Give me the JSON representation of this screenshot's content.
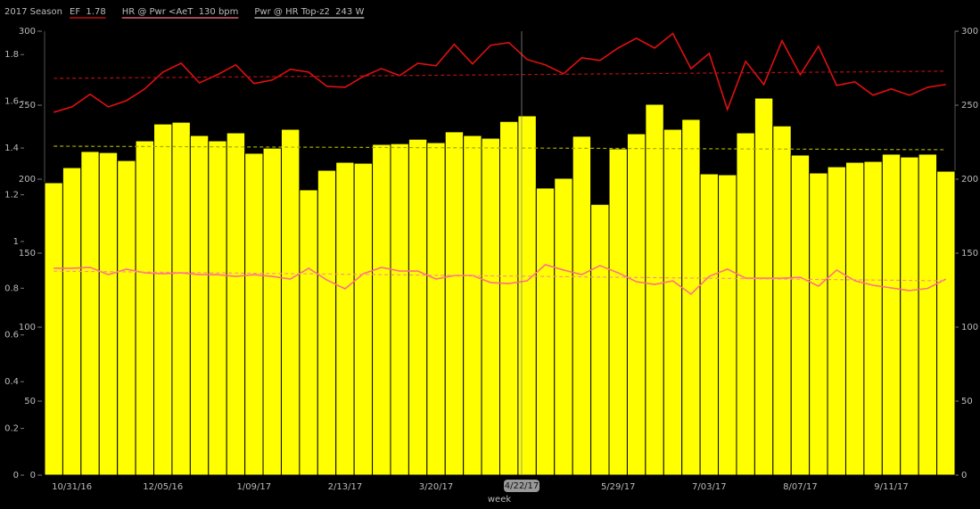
{
  "chart_data": {
    "type": "bar",
    "title": "2017 Season",
    "x_label": "week",
    "crosshair_label": "4/22/17",
    "categories": [
      null,
      "10/31/16",
      null,
      null,
      null,
      null,
      "12/05/16",
      null,
      null,
      null,
      null,
      "1/09/17",
      null,
      null,
      null,
      null,
      "2/13/17",
      null,
      null,
      null,
      null,
      "3/20/17",
      null,
      null,
      null,
      null,
      null,
      null,
      null,
      null,
      null,
      "5/29/17",
      null,
      null,
      null,
      null,
      "7/03/17",
      null,
      null,
      null,
      null,
      "8/07/17",
      null,
      null,
      null,
      null,
      "9/11/17",
      null,
      null,
      null
    ],
    "ylim": [
      0,
      300
    ],
    "yticks": [
      0,
      50,
      100,
      150,
      200,
      250,
      300
    ],
    "y2lim": [
      0,
      1.9
    ],
    "y2ticks": [
      0,
      0.2,
      0.4,
      0.6,
      0.8,
      1,
      1.2,
      1.4,
      1.6,
      1.8
    ],
    "series": [
      {
        "name": "Pwr @ HR Top-z2  243 W",
        "type": "bar",
        "color": "#ffff00",
        "trend_color": "#a8a800",
        "trend": [
          222.3,
          219.9
        ],
        "values": [
          197.6,
          207.8,
          218.7,
          218,
          212.6,
          225.9,
          237.3,
          238.5,
          229.5,
          225.9,
          231.3,
          217.5,
          221,
          233.7,
          192.8,
          206,
          211.4,
          210.8,
          223.5,
          224,
          227,
          224.7,
          232,
          229.5,
          227.7,
          239,
          242.8,
          194,
          200.6,
          229,
          183,
          220.5,
          230.7,
          250.6,
          233.7,
          240.4,
          203.6,
          203,
          231.3,
          254.8,
          236,
          216.3,
          204.2,
          208.4,
          211.4,
          212,
          216.9,
          215,
          216.9,
          205.4
        ]
      },
      {
        "name": "EF  1.78",
        "type": "line",
        "axis": "y2",
        "color": "#e01010",
        "trend_color": "#b01010",
        "trend": [
          1.698,
          1.729
        ],
        "values": [
          1.553,
          1.576,
          1.63,
          1.576,
          1.603,
          1.653,
          1.725,
          1.763,
          1.679,
          1.714,
          1.756,
          1.676,
          1.691,
          1.737,
          1.725,
          1.664,
          1.66,
          1.706,
          1.74,
          1.71,
          1.763,
          1.752,
          1.844,
          1.76,
          1.84,
          1.851,
          1.779,
          1.756,
          1.718,
          1.786,
          1.775,
          1.828,
          1.87,
          1.828,
          1.89,
          1.74,
          1.805,
          1.565,
          1.771,
          1.672,
          1.859,
          1.714,
          1.836,
          1.668,
          1.683,
          1.626,
          1.653,
          1.626,
          1.66,
          1.672
        ]
      },
      {
        "name": "HR @ Pwr <AeT  130 bpm",
        "type": "line",
        "color": "#ff6f8a",
        "trend_color": "#ff8f8f",
        "trend": [
          137.9,
          131.3
        ],
        "values": [
          139.8,
          139.8,
          140.4,
          135.5,
          139.2,
          136.7,
          136.1,
          136.7,
          135.5,
          135.5,
          134.3,
          135.5,
          134.3,
          132.5,
          139.8,
          131.9,
          125.9,
          136.1,
          140.4,
          137.9,
          137.9,
          132.5,
          134.9,
          134.9,
          130.1,
          129.5,
          131.3,
          142.2,
          138.6,
          135.5,
          141.6,
          136.7,
          130.7,
          128.9,
          131.3,
          122.3,
          134.3,
          139.2,
          133.1,
          133.1,
          133.1,
          133.7,
          127.7,
          138.6,
          131.3,
          128.3,
          126.5,
          124.7,
          126.2,
          132.5
        ]
      }
    ]
  }
}
